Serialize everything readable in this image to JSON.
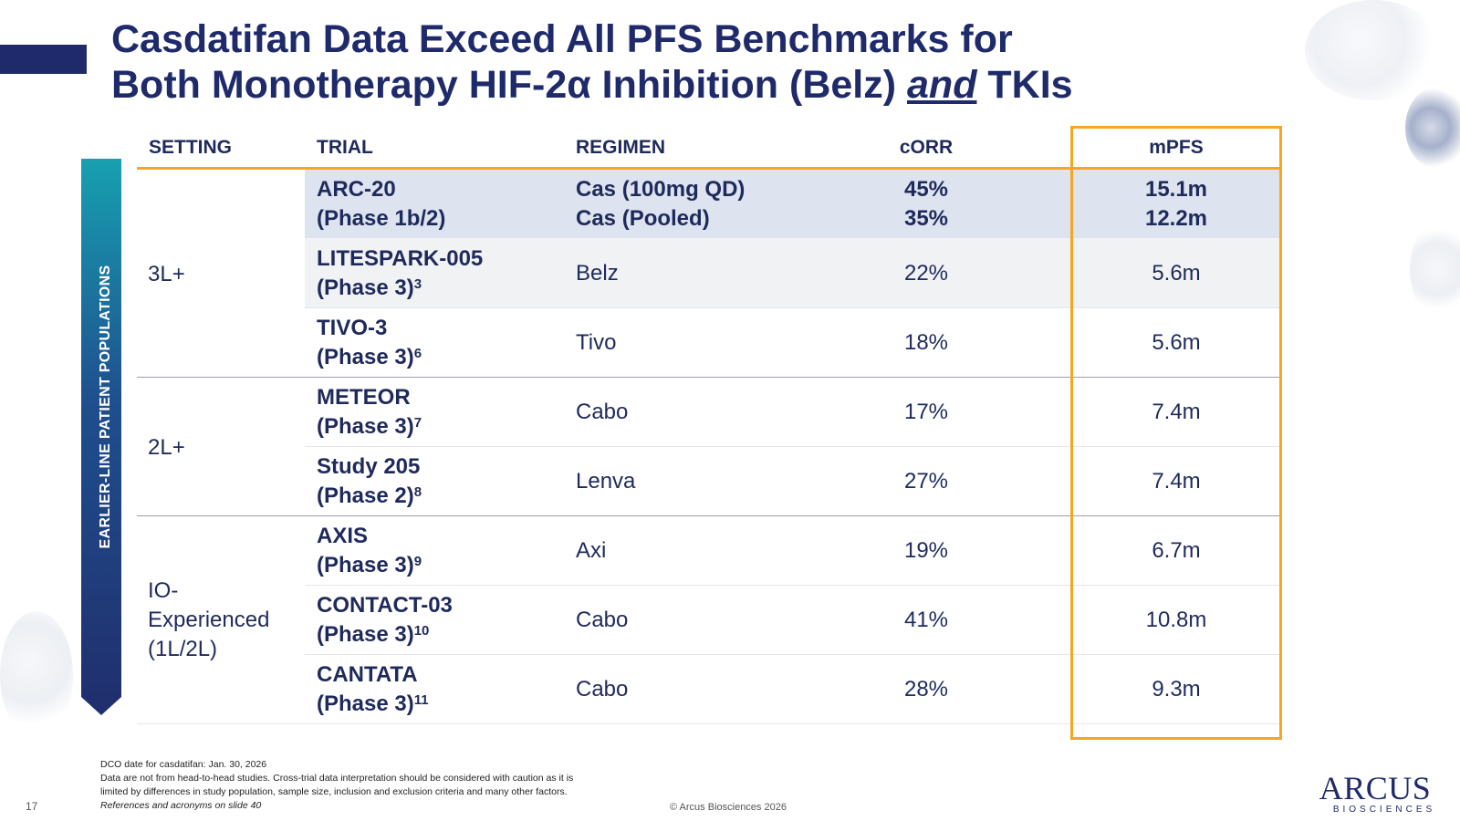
{
  "title": {
    "line1": "Casdatifan Data Exceed All PFS Benchmarks for",
    "line2_before": "Both Monotherapy HIF-2α Inhibition (Belz) ",
    "line2_em": "and",
    "line2_after": " TKIs"
  },
  "side_label": "EARLIER-LINE PATIENT POPULATIONS",
  "headers": {
    "setting": "SETTING",
    "trial": "TRIAL",
    "regimen": "REGIMEN",
    "corr": "cORR",
    "mpfs": "mPFS"
  },
  "settings": [
    "3L+",
    "2L+",
    "IO-",
    "Experienced",
    "(1L/2L)"
  ],
  "rows": [
    {
      "trial_name": "ARC-20",
      "trial_phase": "(Phase 1b/2)",
      "ref": "",
      "regimen": [
        "Cas (100mg QD)",
        "Cas (Pooled)"
      ],
      "corr": [
        "45%",
        "35%"
      ],
      "mpfs": [
        "15.1m",
        "12.2m"
      ]
    },
    {
      "trial_name": "LITESPARK-005",
      "trial_phase": "(Phase 3)",
      "ref": "3",
      "regimen": [
        "Belz"
      ],
      "corr": [
        "22%"
      ],
      "mpfs": [
        "5.6m"
      ]
    },
    {
      "trial_name": "TIVO-3",
      "trial_phase": "(Phase 3)",
      "ref": "6",
      "regimen": [
        "Tivo"
      ],
      "corr": [
        "18%"
      ],
      "mpfs": [
        "5.6m"
      ]
    },
    {
      "trial_name": "METEOR",
      "trial_phase": "(Phase 3)",
      "ref": "7",
      "regimen": [
        "Cabo"
      ],
      "corr": [
        "17%"
      ],
      "mpfs": [
        "7.4m"
      ]
    },
    {
      "trial_name": "Study 205",
      "trial_phase": "(Phase 2)",
      "ref": "8",
      "regimen": [
        "Lenva"
      ],
      "corr": [
        "27%"
      ],
      "mpfs": [
        "7.4m"
      ]
    },
    {
      "trial_name": "AXIS",
      "trial_phase": "(Phase 3)",
      "ref": "9",
      "regimen": [
        "Axi"
      ],
      "corr": [
        "19%"
      ],
      "mpfs": [
        "6.7m"
      ]
    },
    {
      "trial_name": "CONTACT-03",
      "trial_phase": "(Phase 3)",
      "ref": "10",
      "regimen": [
        "Cabo"
      ],
      "corr": [
        "41%"
      ],
      "mpfs": [
        "10.8m"
      ]
    },
    {
      "trial_name": "CANTATA",
      "trial_phase": "(Phase 3)",
      "ref": "11",
      "regimen": [
        "Cabo"
      ],
      "corr": [
        "28%"
      ],
      "mpfs": [
        "9.3m"
      ]
    }
  ],
  "footnotes": [
    "DCO date for casdatifan: Jan. 30, 2026",
    "Data are not from head-to-head studies. Cross-trial data interpretation should be considered with caution as it is",
    "limited by differences in study population, sample size, inclusion and exclusion criteria and many other factors.",
    "References and acronyms on slide 40"
  ],
  "page_number": "17",
  "copyright": "© Arcus Biosciences 2026",
  "logo": {
    "main": "ARCUS",
    "sub": "BIOSCIENCES"
  }
}
